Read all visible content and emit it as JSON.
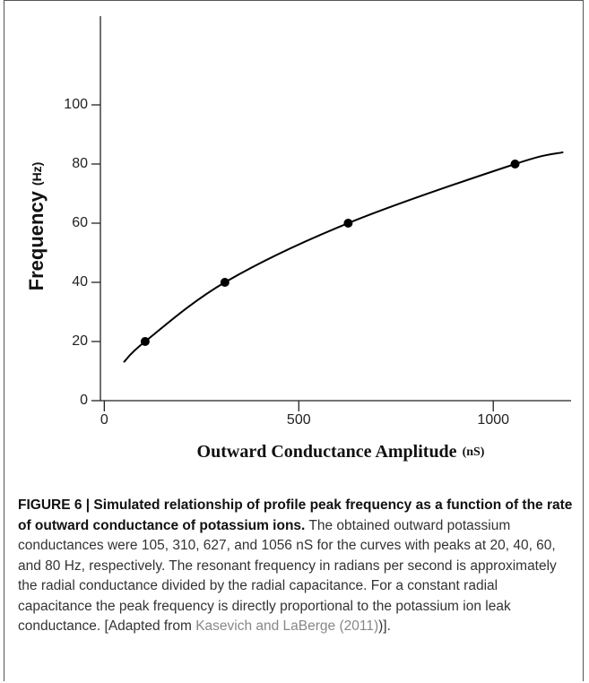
{
  "chart_data": {
    "type": "line",
    "ylabel": "Frequency",
    "ylabel_unit": "(Hz)",
    "xlabel": "Outward Conductance Amplitude",
    "xlabel_unit": "(nS)",
    "x": [
      50,
      105,
      310,
      627,
      1056,
      1180
    ],
    "series": [
      {
        "name": "curve",
        "color": "#000000",
        "values": [
          13,
          20,
          40,
          60,
          80,
          84
        ]
      }
    ],
    "points": {
      "x": [
        105,
        310,
        627,
        1056
      ],
      "values": [
        20,
        40,
        60,
        80
      ],
      "color": "#000000"
    },
    "xlim": [
      -10,
      1200
    ],
    "xticks": [
      0,
      500,
      1000
    ],
    "ylim": [
      0,
      130
    ],
    "yticks": [
      0,
      20,
      40,
      60,
      80,
      100
    ]
  },
  "caption": {
    "label": "FIGURE 6 | Simulated relationship of profile peak frequency as a function of the rate of outward conductance of potassium ions.",
    "text": " The obtained outward potassium conductances were 105, 310, 627, and 1056 nS for the curves with peaks at 20, 40, 60, and 80 Hz, respectively. The resonant frequency in radians per second is approximately the radial conductance divided by the radial capacitance. For a constant radial capacitance the peak frequency is directly proportional to the potassium ion leak conductance. [Adapted from ",
    "link": "Kasevich and LaBerge (2011)",
    "end": ")]."
  }
}
